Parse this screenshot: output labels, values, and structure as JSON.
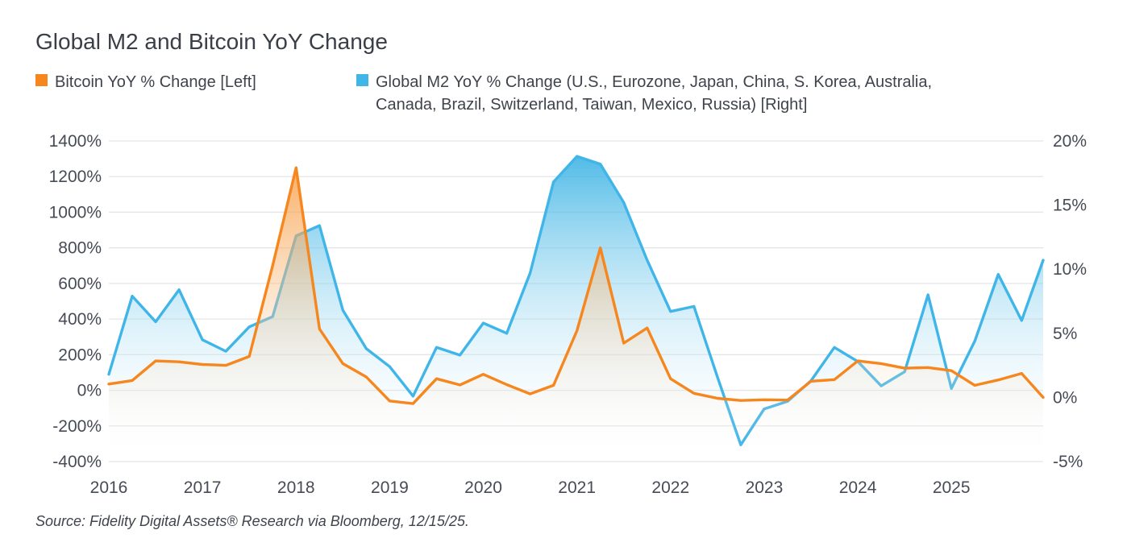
{
  "title": "Global M2 and Bitcoin YoY Change",
  "legend": [
    {
      "label": "Bitcoin YoY % Change [Left]",
      "color": "#F6861E"
    },
    {
      "label": "Global M2 YoY % Change (U.S., Eurozone, Japan, China, S. Korea, Australia, Canada, Brazil, Switzerland, Taiwan, Mexico, Russia) [Right]",
      "color": "#3FB5E8"
    }
  ],
  "source": "Source: Fidelity Digital Assets® Research via Bloomberg, 12/15/25.",
  "chart_data": {
    "type": "area",
    "title": "Global M2 and Bitcoin YoY Change",
    "x_years": [
      2016.0,
      2016.25,
      2016.5,
      2016.75,
      2017.0,
      2017.25,
      2017.5,
      2017.75,
      2018.0,
      2018.25,
      2018.5,
      2018.75,
      2019.0,
      2019.25,
      2019.5,
      2019.75,
      2020.0,
      2020.25,
      2020.5,
      2020.75,
      2021.0,
      2021.25,
      2021.5,
      2021.75,
      2022.0,
      2022.25,
      2022.5,
      2022.75,
      2023.0,
      2023.25,
      2023.5,
      2023.75,
      2024.0,
      2024.25,
      2024.5,
      2024.75,
      2025.0,
      2025.25,
      2025.5,
      2025.75,
      2025.98
    ],
    "series": [
      {
        "name": "Bitcoin YoY % Change",
        "axis": "left",
        "line_color": "#F6861E",
        "fill_top": "rgba(246,137,30,0.82)",
        "fill_bottom": "rgba(255,255,255,0)",
        "values": [
          35,
          55,
          165,
          160,
          145,
          140,
          190,
          700,
          1250,
          345,
          150,
          75,
          -60,
          -75,
          65,
          30,
          90,
          32,
          -20,
          28,
          335,
          800,
          265,
          350,
          65,
          -17,
          -45,
          -57,
          -53,
          -55,
          51,
          60,
          165,
          150,
          124,
          128,
          110,
          28,
          58,
          95,
          -40
        ]
      },
      {
        "name": "Global M2 YoY % Change",
        "axis": "right",
        "line_color": "#3FB5E8",
        "fill_top": "rgba(47,174,227,0.92)",
        "fill_bottom": "rgba(255,255,255,0)",
        "values": [
          1.8,
          7.9,
          5.9,
          8.4,
          4.5,
          3.6,
          5.5,
          6.3,
          12.6,
          13.4,
          6.8,
          3.8,
          2.4,
          0.1,
          3.9,
          3.3,
          5.8,
          5.0,
          9.7,
          16.8,
          18.8,
          18.2,
          15.2,
          10.7,
          6.7,
          7.1,
          1.6,
          -3.7,
          -0.9,
          -0.3,
          1.3,
          3.9,
          2.8,
          0.9,
          2.0,
          8.0,
          0.7,
          4.4,
          9.6,
          6.0,
          10.7
        ]
      }
    ],
    "left_axis": {
      "min": -400,
      "max": 1400,
      "tick_step": 200,
      "tick_labels": [
        "1400%",
        "1200%",
        "1000%",
        "800%",
        "600%",
        "400%",
        "200%",
        "0%",
        "-200%",
        "-400%"
      ]
    },
    "right_axis": {
      "min": -5,
      "max": 20,
      "tick_step": 5,
      "tick_labels": [
        "20%",
        "15%",
        "10%",
        "5%",
        "0%",
        "-5%"
      ]
    },
    "x_tick_labels": [
      "2016",
      "2017",
      "2018",
      "2019",
      "2020",
      "2021",
      "2022",
      "2023",
      "2024",
      "2025"
    ],
    "grid": "horizontal-only",
    "grid_color": "#e5e5e5",
    "axis_text_color": "#474b55",
    "legend_position": "top"
  }
}
